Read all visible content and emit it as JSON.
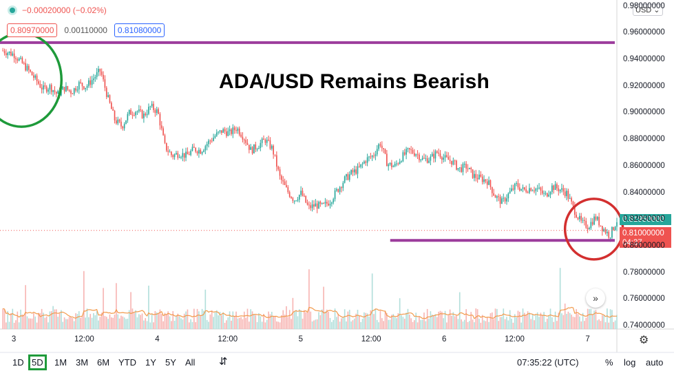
{
  "header": {
    "change": "−0.00020000 (−0.02%)",
    "bid": "0.80970000",
    "spread": "0.00110000",
    "ask": "0.81080000",
    "currency": "USD"
  },
  "title": "ADA/USD Remains Bearish",
  "chart_data": {
    "type": "candlestick",
    "title": "ADA/USD Remains Bearish",
    "y_ticks": [
      "0.98000000",
      "0.96000000",
      "0.94000000",
      "0.92000000",
      "0.90000000",
      "0.88000000",
      "0.86000000",
      "0.84000000",
      "0.82000000",
      "0.80000000",
      "0.78000000",
      "0.76000000",
      "0.74000000"
    ],
    "y_tick_values": [
      0.98,
      0.96,
      0.94,
      0.92,
      0.9,
      0.88,
      0.86,
      0.84,
      0.82,
      0.8,
      0.78,
      0.76,
      0.74
    ],
    "ylim": [
      0.738,
      0.985
    ],
    "x_ticks": [
      "3",
      "12:00",
      "4",
      "12:00",
      "5",
      "12:00",
      "6",
      "12:00",
      "7"
    ],
    "x_tick_values": [
      0.0,
      0.5,
      1.0,
      1.5,
      2.0,
      2.5,
      3.0,
      3.5,
      4.0
    ],
    "xlim": [
      -0.1,
      4.2
    ],
    "price_path": [
      [
        -0.08,
        0.947
      ],
      [
        0.0,
        0.944
      ],
      [
        0.05,
        0.938
      ],
      [
        0.1,
        0.932
      ],
      [
        0.15,
        0.925
      ],
      [
        0.2,
        0.918
      ],
      [
        0.25,
        0.92
      ],
      [
        0.3,
        0.914
      ],
      [
        0.35,
        0.919
      ],
      [
        0.4,
        0.916
      ],
      [
        0.45,
        0.922
      ],
      [
        0.5,
        0.92
      ],
      [
        0.55,
        0.926
      ],
      [
        0.6,
        0.932
      ],
      [
        0.65,
        0.912
      ],
      [
        0.7,
        0.895
      ],
      [
        0.75,
        0.89
      ],
      [
        0.8,
        0.9
      ],
      [
        0.85,
        0.902
      ],
      [
        0.9,
        0.898
      ],
      [
        0.95,
        0.905
      ],
      [
        1.0,
        0.901
      ],
      [
        1.05,
        0.875
      ],
      [
        1.1,
        0.868
      ],
      [
        1.15,
        0.87
      ],
      [
        1.2,
        0.868
      ],
      [
        1.25,
        0.873
      ],
      [
        1.3,
        0.872
      ],
      [
        1.35,
        0.878
      ],
      [
        1.4,
        0.883
      ],
      [
        1.45,
        0.887
      ],
      [
        1.5,
        0.885
      ],
      [
        1.55,
        0.889
      ],
      [
        1.6,
        0.882
      ],
      [
        1.65,
        0.872
      ],
      [
        1.7,
        0.876
      ],
      [
        1.75,
        0.88
      ],
      [
        1.8,
        0.873
      ],
      [
        1.85,
        0.852
      ],
      [
        1.9,
        0.842
      ],
      [
        1.95,
        0.835
      ],
      [
        2.0,
        0.84
      ],
      [
        2.05,
        0.829
      ],
      [
        2.1,
        0.831
      ],
      [
        2.15,
        0.83
      ],
      [
        2.2,
        0.834
      ],
      [
        2.25,
        0.842
      ],
      [
        2.3,
        0.85
      ],
      [
        2.35,
        0.855
      ],
      [
        2.4,
        0.858
      ],
      [
        2.45,
        0.865
      ],
      [
        2.5,
        0.868
      ],
      [
        2.55,
        0.878
      ],
      [
        2.6,
        0.862
      ],
      [
        2.65,
        0.86
      ],
      [
        2.7,
        0.867
      ],
      [
        2.75,
        0.872
      ],
      [
        2.8,
        0.87
      ],
      [
        2.85,
        0.865
      ],
      [
        2.9,
        0.866
      ],
      [
        2.95,
        0.871
      ],
      [
        3.0,
        0.866
      ],
      [
        3.05,
        0.864
      ],
      [
        3.1,
        0.858
      ],
      [
        3.15,
        0.86
      ],
      [
        3.2,
        0.853
      ],
      [
        3.25,
        0.851
      ],
      [
        3.3,
        0.849
      ],
      [
        3.35,
        0.838
      ],
      [
        3.4,
        0.833
      ],
      [
        3.45,
        0.84
      ],
      [
        3.5,
        0.846
      ],
      [
        3.55,
        0.842
      ],
      [
        3.6,
        0.844
      ],
      [
        3.65,
        0.843
      ],
      [
        3.7,
        0.838
      ],
      [
        3.75,
        0.845
      ],
      [
        3.8,
        0.843
      ],
      [
        3.85,
        0.84
      ],
      [
        3.9,
        0.828
      ],
      [
        3.95,
        0.818
      ],
      [
        4.0,
        0.815
      ],
      [
        4.05,
        0.822
      ],
      [
        4.1,
        0.814
      ],
      [
        4.15,
        0.808
      ],
      [
        4.2,
        0.8195
      ]
    ],
    "horizontal_lines": [
      {
        "y": 0.953,
        "from": -0.1,
        "to": 4.2,
        "color": "#9c3c9c"
      },
      {
        "y": 0.8045,
        "from": 2.62,
        "to": 4.2,
        "color": "#9c3c9c"
      }
    ],
    "circles": [
      {
        "cx": 0.05,
        "cy": 0.925,
        "color": "#1e9a3a"
      },
      {
        "cx": 4.04,
        "cy": 0.813,
        "color": "#d32f2f"
      }
    ],
    "last_price": "0.81950000",
    "prev_price": "0.81000000",
    "countdown": "04:37",
    "current_price_value": 0.8195
  },
  "toolbar": {
    "ranges": [
      "1D",
      "5D",
      "1M",
      "3M",
      "6M",
      "YTD",
      "1Y",
      "5Y",
      "All"
    ],
    "selected_range": "5D",
    "time": "07:35:22 (UTC)",
    "percent": "%",
    "log": "log",
    "auto": "auto"
  },
  "colors": {
    "up": "#26a69a",
    "down": "#ef5350",
    "level_line": "#9c3c9c",
    "volume_ma": "#f2994a"
  }
}
